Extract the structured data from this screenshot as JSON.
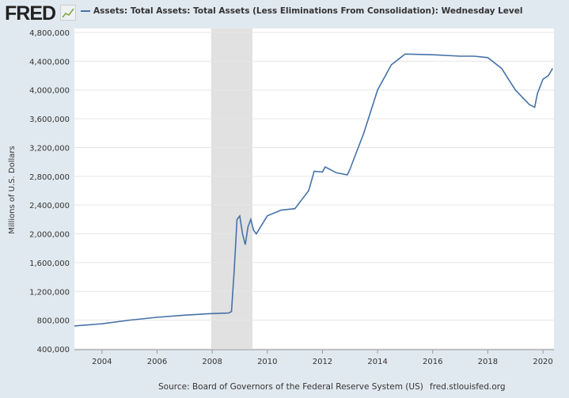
{
  "header": {
    "logo": "FRED",
    "title": "Assets: Total Assets: Total Assets (Less Eliminations From Consolidation): Wednesday Level"
  },
  "footer": {
    "source": "Source: Board of Governors of the Federal Reserve System (US)",
    "site": "fred.stlouisfed.org"
  },
  "colors": {
    "series": "#4572a7",
    "recession": "#e1e1e1",
    "background": "#e1e9f0"
  },
  "chart_data": {
    "type": "line",
    "title": "Assets: Total Assets: Total Assets (Less Eliminations From Consolidation): Wednesday Level",
    "xlabel": "",
    "ylabel": "Millions of U.S. Dollars",
    "xlim": [
      2003.0,
      2020.4
    ],
    "ylim": [
      400000,
      4800000
    ],
    "xticks": [
      2004,
      2006,
      2008,
      2010,
      2012,
      2014,
      2016,
      2018,
      2020
    ],
    "yticks": [
      400000,
      800000,
      1200000,
      1600000,
      2000000,
      2400000,
      2800000,
      3200000,
      3600000,
      4000000,
      4400000,
      4800000
    ],
    "ytick_labels": [
      "400,000",
      "800,000",
      "1,200,000",
      "1,600,000",
      "2,000,000",
      "2,400,000",
      "2,800,000",
      "3,200,000",
      "3,600,000",
      "4,000,000",
      "4,400,000",
      "4,800,000"
    ],
    "recessions": [
      [
        2007.96,
        2009.46
      ]
    ],
    "series": [
      {
        "name": "Total Assets",
        "x": [
          2003.0,
          2004,
          2005,
          2006,
          2007,
          2007.9,
          2008.6,
          2008.7,
          2008.8,
          2008.9,
          2009.0,
          2009.1,
          2009.2,
          2009.3,
          2009.4,
          2009.5,
          2009.6,
          2010,
          2010.5,
          2011,
          2011.5,
          2011.7,
          2012,
          2012.1,
          2012.5,
          2012.9,
          2013,
          2013.5,
          2014,
          2014.5,
          2015,
          2016,
          2017,
          2017.5,
          2018,
          2018.5,
          2019,
          2019.5,
          2019.7,
          2019.8,
          2020,
          2020.2,
          2020.35
        ],
        "values": [
          720000,
          750000,
          800000,
          840000,
          870000,
          890000,
          900000,
          920000,
          1500000,
          2200000,
          2250000,
          2000000,
          1850000,
          2100000,
          2200000,
          2050000,
          2000000,
          2250000,
          2330000,
          2350000,
          2600000,
          2870000,
          2860000,
          2930000,
          2850000,
          2820000,
          2900000,
          3400000,
          4000000,
          4350000,
          4500000,
          4490000,
          4470000,
          4470000,
          4450000,
          4300000,
          4000000,
          3800000,
          3760000,
          3950000,
          4150000,
          4200000,
          4300000
        ]
      }
    ]
  }
}
